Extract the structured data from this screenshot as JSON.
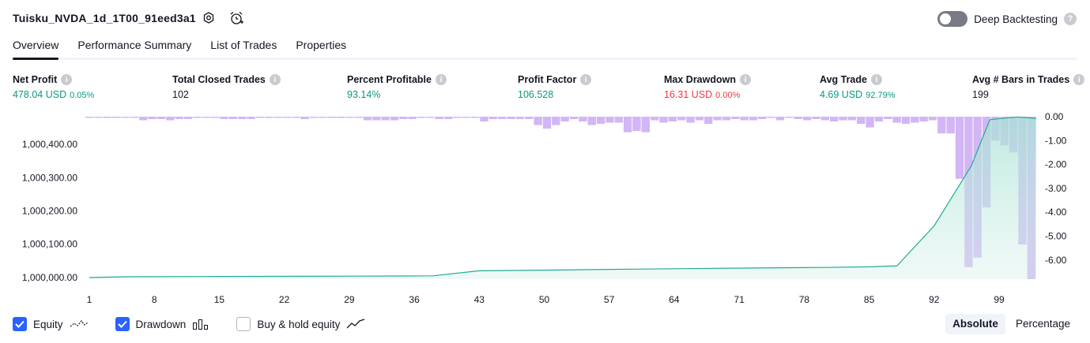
{
  "header": {
    "title": "Tuisku_NVDA_1d_1T00_91eed3a1",
    "deep_backtesting_label": "Deep Backtesting",
    "deep_backtesting_enabled": false,
    "help_glyph": "?"
  },
  "tabs": [
    {
      "label": "Overview",
      "active": true
    },
    {
      "label": "Performance Summary",
      "active": false
    },
    {
      "label": "List of Trades",
      "active": false
    },
    {
      "label": "Properties",
      "active": false
    }
  ],
  "metrics": {
    "net_profit": {
      "label": "Net Profit",
      "value": "478.04 USD",
      "pct": "0.05%"
    },
    "total_closed_trades": {
      "label": "Total Closed Trades",
      "value": "102"
    },
    "percent_profitable": {
      "label": "Percent Profitable",
      "value": "93.14%"
    },
    "profit_factor": {
      "label": "Profit Factor",
      "value": "106.528"
    },
    "max_drawdown": {
      "label": "Max Drawdown",
      "value": "16.31 USD",
      "pct": "0.00%"
    },
    "avg_trade": {
      "label": "Avg Trade",
      "value": "4.69 USD",
      "pct": "92.79%"
    },
    "avg_bars_in_trades": {
      "label": "Avg # Bars in Trades",
      "value": "199"
    }
  },
  "colors": {
    "profit": "#089981",
    "loss": "#f23645",
    "equity_line": "#22ab94",
    "equity_fill": "#d7f1eb",
    "drawdown_bar": "#d2b6f5",
    "accent": "#2962ff"
  },
  "chart_data": {
    "type": "area",
    "x_ticks": [
      "1",
      "8",
      "15",
      "22",
      "29",
      "36",
      "43",
      "50",
      "57",
      "64",
      "71",
      "78",
      "85",
      "92",
      "99"
    ],
    "xlim": [
      1,
      103
    ],
    "equity": {
      "ylabel_ticks": [
        "1,000,000.00",
        "1,000,100.00",
        "1,000,200.00",
        "1,000,300.00",
        "1,000,400.00"
      ],
      "ylim": [
        999995,
        1000483
      ],
      "points": [
        [
          1,
          1000000
        ],
        [
          5,
          1000002
        ],
        [
          15,
          1000003
        ],
        [
          30,
          1000004
        ],
        [
          38,
          1000005
        ],
        [
          43,
          1000020
        ],
        [
          50,
          1000022
        ],
        [
          60,
          1000025
        ],
        [
          70,
          1000028
        ],
        [
          80,
          1000030
        ],
        [
          85,
          1000032
        ],
        [
          88,
          1000035
        ],
        [
          92,
          1000155
        ],
        [
          96,
          1000335
        ],
        [
          98,
          1000474
        ],
        [
          100,
          1000480
        ],
        [
          101,
          1000482
        ],
        [
          103,
          1000478
        ]
      ]
    },
    "drawdown": {
      "ylabel_ticks": [
        "0.00",
        "-1.00",
        "-2.00",
        "-3.00",
        "-4.00",
        "-5.00",
        "-6.00"
      ],
      "ylim": [
        -6.8,
        0
      ],
      "values": [
        -0.05,
        -0.05,
        -0.05,
        -0.05,
        -0.05,
        -0.05,
        -0.15,
        -0.1,
        -0.1,
        -0.15,
        -0.1,
        -0.1,
        -0.05,
        -0.05,
        -0.05,
        -0.1,
        -0.1,
        -0.1,
        -0.1,
        -0.05,
        -0.05,
        -0.05,
        -0.05,
        -0.05,
        -0.1,
        -0.05,
        -0.05,
        -0.05,
        -0.05,
        -0.05,
        -0.05,
        -0.15,
        -0.15,
        -0.15,
        -0.15,
        -0.1,
        -0.1,
        -0.05,
        -0.05,
        -0.1,
        -0.1,
        -0.05,
        -0.05,
        -0.05,
        -0.2,
        -0.1,
        -0.1,
        -0.1,
        -0.1,
        -0.1,
        -0.35,
        -0.5,
        -0.35,
        -0.2,
        -0.1,
        -0.2,
        -0.35,
        -0.3,
        -0.25,
        -0.25,
        -0.65,
        -0.6,
        -0.65,
        -0.15,
        -0.25,
        -0.2,
        -0.15,
        -0.25,
        -0.15,
        -0.3,
        -0.15,
        -0.15,
        -0.1,
        -0.15,
        -0.15,
        -0.1,
        -0.05,
        -0.15,
        -0.05,
        -0.1,
        -0.15,
        -0.1,
        -0.15,
        -0.2,
        -0.15,
        -0.15,
        -0.3,
        -0.45,
        -0.2,
        -0.1,
        -0.25,
        -0.3,
        -0.25,
        -0.2,
        -0.15,
        -0.7,
        -0.7,
        -2.6,
        -6.3,
        -5.9,
        -3.8,
        -1.0,
        -1.2,
        -1.5,
        -5.35,
        -6.8
      ]
    }
  },
  "legend": [
    {
      "label": "Equity",
      "checked": true,
      "icon": "equity-line-icon"
    },
    {
      "label": "Drawdown",
      "checked": true,
      "icon": "drawdown-bars-icon"
    },
    {
      "label": "Buy & hold equity",
      "checked": false,
      "icon": "buy-hold-line-icon"
    }
  ],
  "scale_toggle": {
    "absolute": "Absolute",
    "percentage": "Percentage",
    "active": "absolute"
  }
}
